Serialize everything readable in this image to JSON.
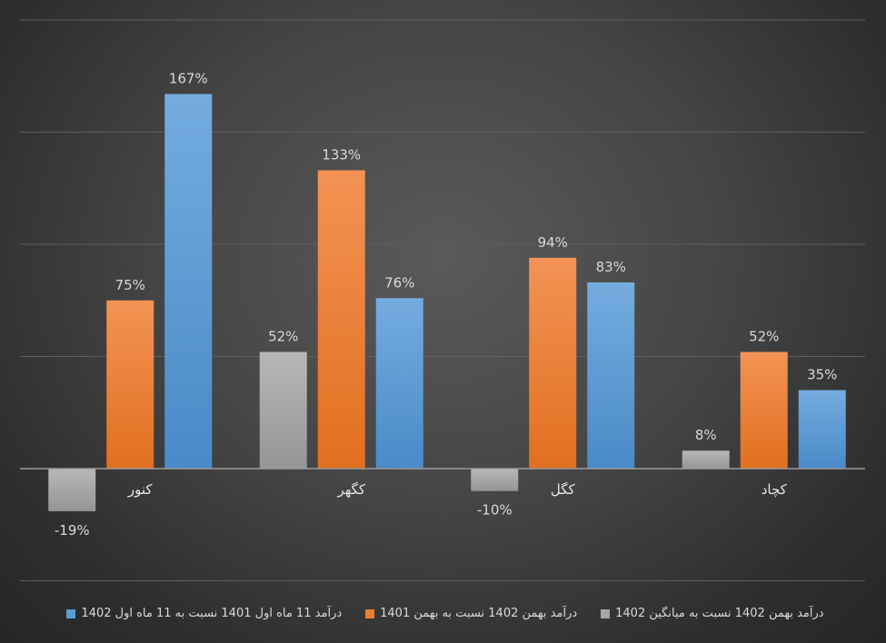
{
  "chart_data": {
    "type": "bar",
    "categories": [
      "کنور",
      "کگهر",
      "کگل",
      "کچاد"
    ],
    "series": [
      {
        "name": "درآمد بهمن 1402  نسبت به میانگین 1402",
        "values": [
          -19,
          52,
          -10,
          8
        ],
        "labels": [
          "-19%",
          "52%",
          "-10%",
          "8%"
        ],
        "color": "#a6a6a6"
      },
      {
        "name": "درآمد بهمن 1402  نسبت به بهمن 1401",
        "values": [
          75,
          133,
          94,
          52
        ],
        "labels": [
          "75%",
          "133%",
          "94%",
          "52%"
        ],
        "color": "#ed7d31"
      },
      {
        "name": "درآمد 11 ماه اول 1401  نسبت به 11 ماه اول 1402",
        "values": [
          167,
          76,
          83,
          35
        ],
        "labels": [
          "167%",
          "76%",
          "83%",
          "35%"
        ],
        "color": "#5b9bd5"
      }
    ],
    "ylim": [
      -50,
      200
    ],
    "grid": true,
    "legend_position": "bottom"
  }
}
